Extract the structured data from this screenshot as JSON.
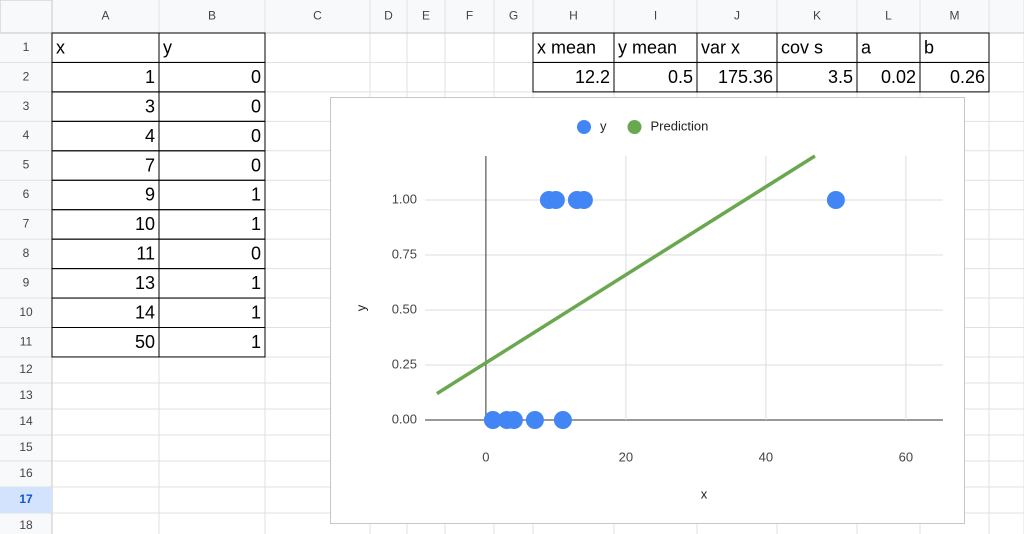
{
  "sheet": {
    "columns": [
      "A",
      "B",
      "C",
      "D",
      "E",
      "F",
      "G",
      "H",
      "I",
      "J",
      "K",
      "L",
      "M"
    ],
    "rows": [
      1,
      2,
      3,
      4,
      5,
      6,
      7,
      8,
      9,
      10,
      11,
      12,
      13,
      14,
      15,
      16,
      17,
      18
    ]
  },
  "table": {
    "header": [
      "x",
      "y"
    ],
    "rows": [
      [
        1,
        0
      ],
      [
        3,
        0
      ],
      [
        4,
        0
      ],
      [
        7,
        0
      ],
      [
        9,
        1
      ],
      [
        10,
        1
      ],
      [
        11,
        0
      ],
      [
        13,
        1
      ],
      [
        14,
        1
      ],
      [
        50,
        1
      ]
    ]
  },
  "stats": {
    "header": [
      "x mean",
      "y mean",
      "var x",
      "cov s",
      "a",
      "b"
    ],
    "values": [
      12.2,
      0.5,
      175.36,
      3.5,
      0.02,
      0.26
    ]
  },
  "chart_data": {
    "type": "scatter",
    "x_label": "x",
    "y_label": "y",
    "series": [
      {
        "name": "y",
        "color": "#4285f4",
        "x": [
          1,
          3,
          4,
          7,
          9,
          10,
          11,
          13,
          14,
          50
        ],
        "values": [
          0,
          0,
          0,
          0,
          1,
          1,
          0,
          1,
          1,
          1
        ]
      },
      {
        "name": "Prediction",
        "color": "#6aa84f",
        "type": "line",
        "x": [
          -7,
          47
        ],
        "values": [
          0.12,
          1.2
        ]
      }
    ],
    "xlim": [
      -8.7,
      65.3
    ],
    "xticks": [
      0,
      20,
      40,
      60
    ],
    "ylim": [
      0,
      1.2
    ],
    "yticks": [
      {
        "value": 0,
        "label": "0.00"
      },
      {
        "value": 0.25,
        "label": "0.25"
      },
      {
        "value": 0.5,
        "label": "0.50"
      },
      {
        "value": 0.75,
        "label": "0.75"
      },
      {
        "value": 1,
        "label": "1.00"
      }
    ],
    "grid": true,
    "legend": "top"
  }
}
